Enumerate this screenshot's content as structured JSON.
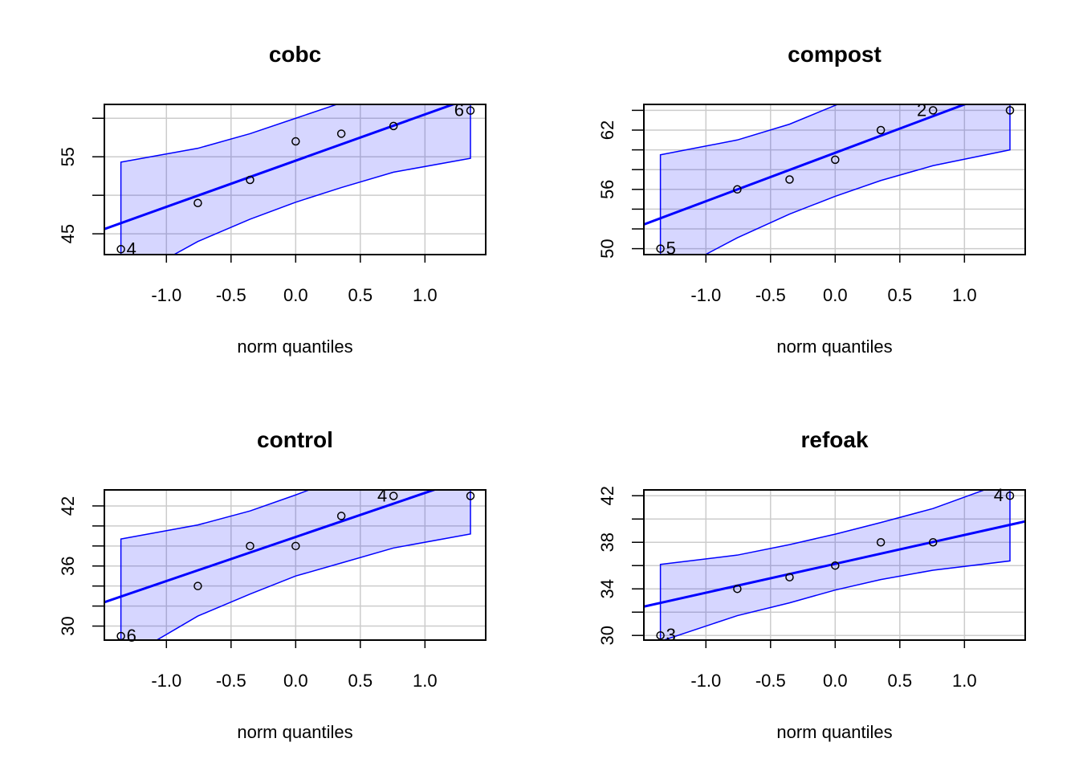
{
  "chart_data": [
    {
      "type": "scatter",
      "title": "cobc",
      "xlabel": "norm quantiles",
      "ylabel": "",
      "xlim": [
        -1.48,
        1.47
      ],
      "ylim": [
        42.3,
        61.8
      ],
      "xticks": [
        -1.0,
        -0.5,
        0.0,
        0.5,
        1.0
      ],
      "xtick_labels": [
        "-1.0",
        "-0.5",
        "0.0",
        "0.5",
        "1.0"
      ],
      "yticks": [
        45,
        50,
        55,
        60
      ],
      "ytick_labels": [
        "45",
        "",
        "55",
        ""
      ],
      "grid": true,
      "x": [
        -1.352,
        -0.757,
        -0.353,
        0,
        0.353,
        0.757,
        1.352
      ],
      "y": [
        43,
        49,
        52,
        57,
        58,
        59,
        61
      ],
      "reference_line": {
        "intercept": 54.5,
        "slope": 6.0
      },
      "envelope_upper": [
        54.3,
        56.1,
        58.0,
        60.0,
        62.0,
        64.0,
        67.0
      ],
      "envelope_lower": [
        38.5,
        44.0,
        46.9,
        49.1,
        51.0,
        53.0,
        54.8
      ],
      "point_labels": [
        {
          "index": 0,
          "text": "4",
          "side": "right"
        },
        {
          "index": 6,
          "text": "6",
          "side": "left"
        }
      ]
    },
    {
      "type": "scatter",
      "title": "compost",
      "xlabel": "norm quantiles",
      "ylabel": "",
      "xlim": [
        -1.48,
        1.47
      ],
      "ylim": [
        49.4,
        64.6
      ],
      "xticks": [
        -1.0,
        -0.5,
        0.0,
        0.5,
        1.0
      ],
      "xtick_labels": [
        "-1.0",
        "-0.5",
        "0.0",
        "0.5",
        "1.0"
      ],
      "yticks": [
        50,
        52,
        54,
        56,
        58,
        60,
        62,
        64
      ],
      "ytick_labels": [
        "50",
        "",
        "",
        "56",
        "",
        "",
        "62",
        ""
      ],
      "grid": true,
      "x": [
        -1.352,
        -0.757,
        -0.353,
        0,
        0.353,
        0.757,
        1.352
      ],
      "y": [
        50,
        56,
        57,
        59,
        62,
        64,
        64
      ],
      "reference_line": {
        "intercept": 59.7,
        "slope": 4.9
      },
      "envelope_upper": [
        59.5,
        61.0,
        62.6,
        64.5,
        66.3,
        68.0,
        71.0
      ],
      "envelope_lower": [
        47.0,
        51.1,
        53.5,
        55.3,
        56.9,
        58.4,
        60.0
      ],
      "point_labels": [
        {
          "index": 0,
          "text": "5",
          "side": "right"
        },
        {
          "index": 5,
          "text": "2",
          "side": "left"
        }
      ]
    },
    {
      "type": "scatter",
      "title": "control",
      "xlabel": "norm quantiles",
      "ylabel": "",
      "xlim": [
        -1.48,
        1.47
      ],
      "ylim": [
        28.6,
        43.6
      ],
      "xticks": [
        -1.0,
        -0.5,
        0.0,
        0.5,
        1.0
      ],
      "xtick_labels": [
        "-1.0",
        "-0.5",
        "0.0",
        "0.5",
        "1.0"
      ],
      "yticks": [
        30,
        32,
        34,
        36,
        38,
        40,
        42
      ],
      "ytick_labels": [
        "30",
        "",
        "",
        "36",
        "",
        "",
        "42"
      ],
      "grid": true,
      "x": [
        -1.352,
        -0.757,
        -0.353,
        0,
        0.353,
        0.757,
        1.352
      ],
      "y": [
        29,
        34,
        38,
        38,
        41,
        43,
        43
      ],
      "reference_line": {
        "intercept": 38.9,
        "slope": 4.4
      },
      "envelope_upper": [
        38.7,
        40.1,
        41.5,
        43.1,
        44.8,
        46.5,
        49.0
      ],
      "envelope_lower": [
        26.5,
        31.0,
        33.2,
        35.0,
        36.3,
        37.8,
        39.2
      ],
      "point_labels": [
        {
          "index": 0,
          "text": "6",
          "side": "right"
        },
        {
          "index": 5,
          "text": "4",
          "side": "left"
        }
      ]
    },
    {
      "type": "scatter",
      "title": "refoak",
      "xlabel": "norm quantiles",
      "ylabel": "",
      "xlim": [
        -1.48,
        1.47
      ],
      "ylim": [
        29.6,
        42.5
      ],
      "xticks": [
        -1.0,
        -0.5,
        0.0,
        0.5,
        1.0
      ],
      "xtick_labels": [
        "-1.0",
        "-0.5",
        "0.0",
        "0.5",
        "1.0"
      ],
      "yticks": [
        30,
        32,
        34,
        36,
        38,
        40,
        42
      ],
      "ytick_labels": [
        "30",
        "",
        "34",
        "",
        "38",
        "",
        "42"
      ],
      "grid": true,
      "x": [
        -1.352,
        -0.757,
        -0.353,
        0,
        0.353,
        0.757,
        1.352
      ],
      "y": [
        30,
        34,
        35,
        36,
        38,
        38,
        42
      ],
      "reference_line": {
        "intercept": 36.15,
        "slope": 2.48
      },
      "envelope_upper": [
        36.1,
        36.9,
        37.8,
        38.7,
        39.7,
        40.9,
        43.3
      ],
      "envelope_lower": [
        29.5,
        31.7,
        32.8,
        33.9,
        34.8,
        35.6,
        36.4
      ],
      "point_labels": [
        {
          "index": 0,
          "text": "3",
          "side": "right"
        },
        {
          "index": 6,
          "text": "4",
          "side": "left"
        }
      ]
    }
  ],
  "colors": {
    "line": "#0000ff",
    "envelope_fill": "rgba(0,0,255,0.16)",
    "grid": "#cccccc",
    "axis": "#000000"
  }
}
